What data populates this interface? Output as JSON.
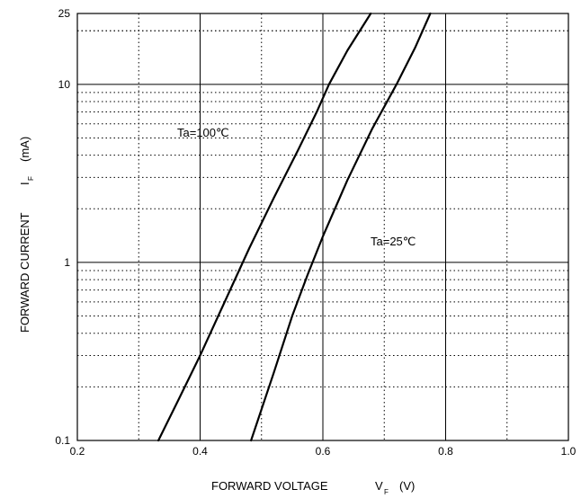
{
  "chart_data": {
    "type": "line",
    "xlabel": "FORWARD VOLTAGE",
    "xlabel_symbol": "V",
    "xlabel_subscript": "F",
    "xlabel_unit": "(V)",
    "ylabel": "FORWARD CURRENT",
    "ylabel_symbol": "I",
    "ylabel_subscript": "F",
    "ylabel_unit": "(mA)",
    "xlim": [
      0.2,
      1.0
    ],
    "ylim": [
      0.1,
      25
    ],
    "yscale": "log",
    "grid": true,
    "x_ticks": [
      0.2,
      0.4,
      0.6,
      0.8,
      1.0
    ],
    "x_tick_labels": [
      "0.2",
      "0.4",
      "0.6",
      "0.8",
      "1.0"
    ],
    "y_ticks": [
      0.1,
      1,
      10,
      25
    ],
    "y_tick_labels": [
      "0.1",
      "1",
      "10",
      "25"
    ],
    "series": [
      {
        "name": "Ta=100℃",
        "color": "#000000",
        "x": [
          0.332,
          0.365,
          0.4,
          0.44,
          0.48,
          0.52,
          0.56,
          0.59,
          0.61,
          0.64,
          0.678
        ],
        "y": [
          0.1,
          0.17,
          0.3,
          0.6,
          1.2,
          2.3,
          4.3,
          7.0,
          10.0,
          15.5,
          25
        ]
      },
      {
        "name": "Ta=25℃",
        "color": "#000000",
        "x": [
          0.483,
          0.52,
          0.55,
          0.575,
          0.6,
          0.64,
          0.68,
          0.72,
          0.75,
          0.775
        ],
        "y": [
          0.1,
          0.24,
          0.5,
          0.85,
          1.4,
          2.9,
          5.6,
          10.0,
          16.0,
          25
        ]
      }
    ]
  }
}
